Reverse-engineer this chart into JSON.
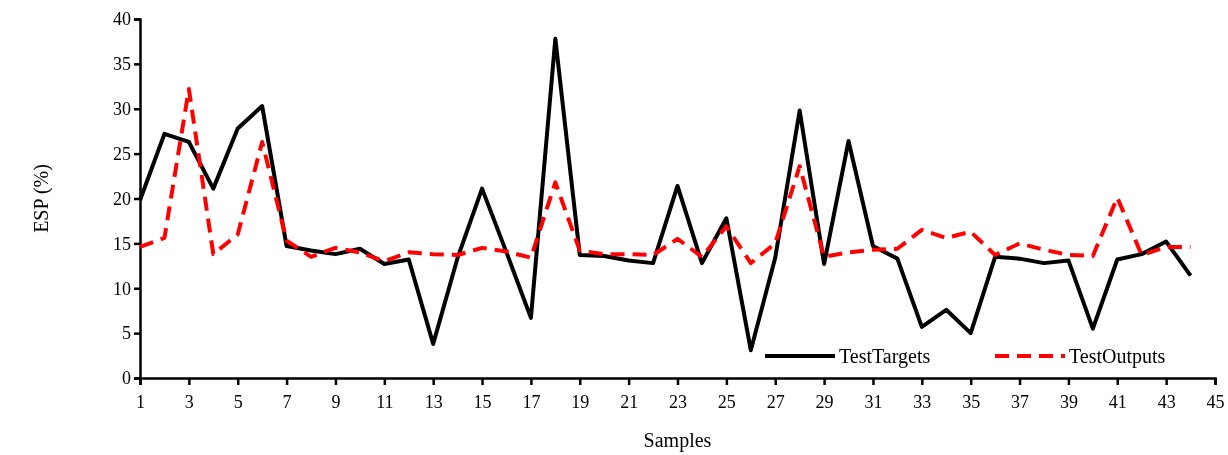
{
  "chart_data": {
    "type": "line",
    "xlabel": "Samples",
    "ylabel": "ESP (%)",
    "x": [
      1,
      2,
      3,
      4,
      5,
      6,
      7,
      8,
      9,
      10,
      11,
      12,
      13,
      14,
      15,
      16,
      17,
      18,
      19,
      20,
      21,
      22,
      23,
      24,
      25,
      26,
      27,
      28,
      29,
      30,
      31,
      32,
      33,
      34,
      35,
      36,
      37,
      38,
      39,
      40,
      41,
      42,
      43,
      44
    ],
    "xlim": [
      1,
      45
    ],
    "xticks": [
      1,
      3,
      5,
      7,
      9,
      11,
      13,
      15,
      17,
      19,
      21,
      23,
      25,
      27,
      29,
      31,
      33,
      35,
      37,
      39,
      41,
      43,
      45
    ],
    "ylim": [
      0,
      40
    ],
    "yticks": [
      0,
      5,
      10,
      15,
      20,
      25,
      30,
      35,
      40
    ],
    "grid": false,
    "legend": "bottom right",
    "marker": "none",
    "series": [
      {
        "name": "TestTargets",
        "color": "#000000",
        "line_style": "solid",
        "values": [
          19.8,
          27.2,
          26.3,
          21.1,
          27.8,
          30.3,
          14.7,
          14.2,
          13.8,
          14.4,
          12.7,
          13.2,
          3.8,
          13.4,
          21.1,
          14.0,
          6.7,
          37.8,
          13.7,
          13.6,
          13.1,
          12.8,
          21.4,
          12.8,
          17.8,
          3.1,
          13.4,
          29.8,
          12.7,
          26.4,
          14.7,
          13.3,
          5.7,
          7.6,
          5.0,
          13.5,
          13.3,
          12.8,
          13.1,
          5.5,
          13.2,
          13.8,
          15.2,
          11.4
        ]
      },
      {
        "name": "TestOutputs",
        "color": "#ff0000",
        "line_style": "dashed",
        "values": [
          14.6,
          15.6,
          32.2,
          13.8,
          16.0,
          26.3,
          15.3,
          13.5,
          14.5,
          14.0,
          13.0,
          14.0,
          13.8,
          13.7,
          14.5,
          14.1,
          13.4,
          21.8,
          14.2,
          13.8,
          13.8,
          13.7,
          15.5,
          13.5,
          16.9,
          12.8,
          15.0,
          23.6,
          13.5,
          14.0,
          14.3,
          14.4,
          16.5,
          15.6,
          16.3,
          13.7,
          15.0,
          14.3,
          13.7,
          13.6,
          20.1,
          13.7,
          14.6,
          14.6
        ]
      }
    ]
  }
}
